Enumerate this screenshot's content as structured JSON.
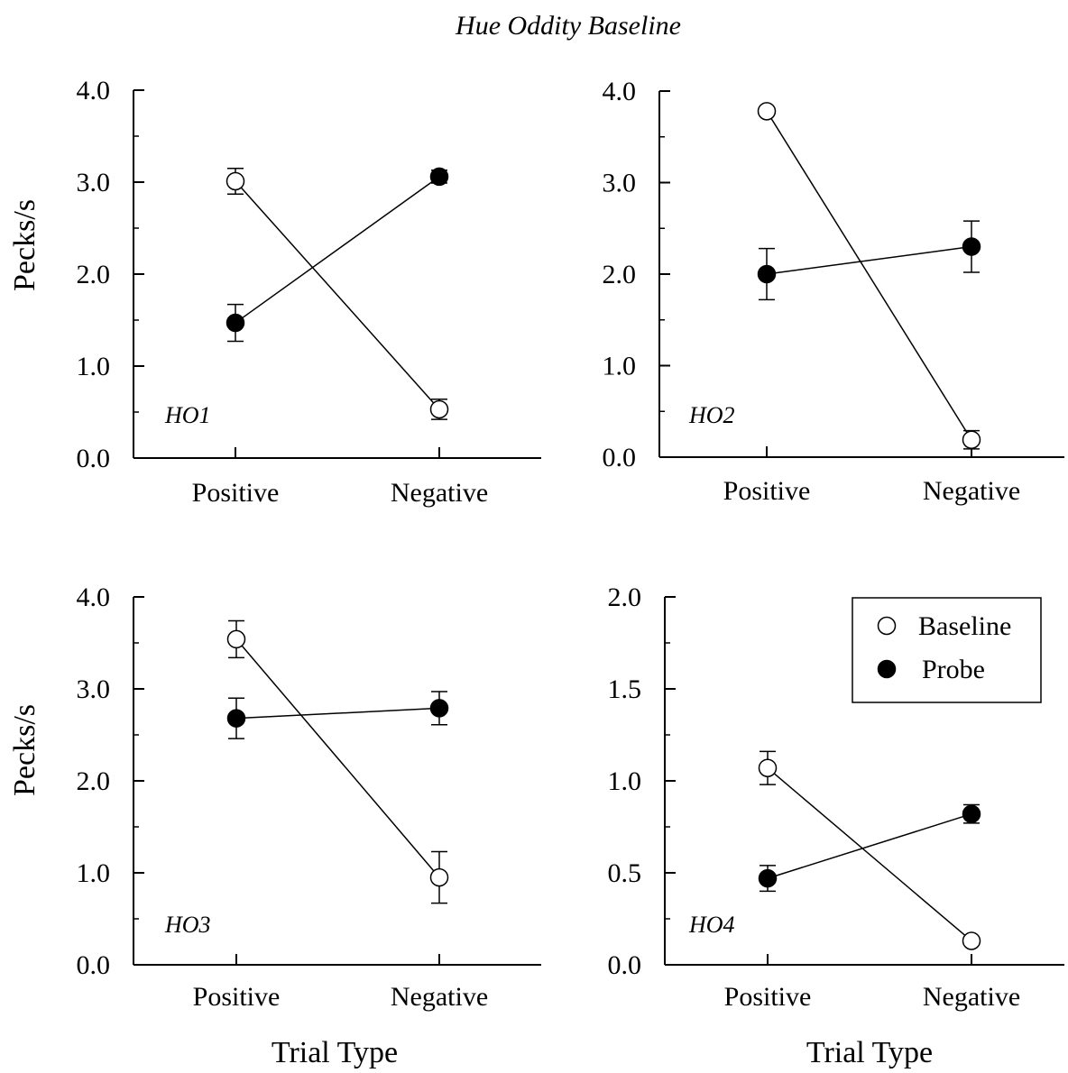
{
  "figure": {
    "title": "Hue Oddity Baseline"
  },
  "chart_data": [
    {
      "type": "line",
      "panel_label": "HO1",
      "categories": [
        "Positive",
        "Negative"
      ],
      "ylabel": "Pecks/s",
      "xlabel": "",
      "ylim": [
        0,
        4
      ],
      "yticks": [
        "0.0",
        "1.0",
        "2.0",
        "3.0",
        "4.0"
      ],
      "ytick_values": [
        0,
        1,
        2,
        3,
        4
      ],
      "minor_step": 0.5,
      "legend": false,
      "series": [
        {
          "name": "Baseline",
          "marker": "open",
          "values": [
            3.01,
            0.53
          ],
          "errors": [
            0.14,
            0.11
          ]
        },
        {
          "name": "Probe",
          "marker": "filled",
          "values": [
            1.47,
            3.06
          ],
          "errors": [
            0.2,
            0.07
          ]
        }
      ]
    },
    {
      "type": "line",
      "panel_label": "HO2",
      "categories": [
        "Positive",
        "Negative"
      ],
      "ylabel": "",
      "xlabel": "",
      "ylim": [
        0,
        4
      ],
      "yticks": [
        "0.0",
        "1.0",
        "2.0",
        "3.0",
        "4.0"
      ],
      "ytick_values": [
        0,
        1,
        2,
        3,
        4
      ],
      "minor_step": 0.5,
      "legend": false,
      "series": [
        {
          "name": "Baseline",
          "marker": "open",
          "values": [
            3.78,
            0.19
          ],
          "errors": [
            0.02,
            0.1
          ]
        },
        {
          "name": "Probe",
          "marker": "filled",
          "values": [
            2.0,
            2.3
          ],
          "errors": [
            0.28,
            0.28
          ]
        }
      ]
    },
    {
      "type": "line",
      "panel_label": "HO3",
      "categories": [
        "Positive",
        "Negative"
      ],
      "ylabel": "Pecks/s",
      "xlabel": "Trial Type",
      "ylim": [
        0,
        4
      ],
      "yticks": [
        "0.0",
        "1.0",
        "2.0",
        "3.0",
        "4.0"
      ],
      "ytick_values": [
        0,
        1,
        2,
        3,
        4
      ],
      "minor_step": 0.5,
      "legend": false,
      "series": [
        {
          "name": "Baseline",
          "marker": "open",
          "values": [
            3.54,
            0.95
          ],
          "errors": [
            0.2,
            0.28
          ]
        },
        {
          "name": "Probe",
          "marker": "filled",
          "values": [
            2.68,
            2.79
          ],
          "errors": [
            0.22,
            0.18
          ]
        }
      ]
    },
    {
      "type": "line",
      "panel_label": "HO4",
      "categories": [
        "Positive",
        "Negative"
      ],
      "ylabel": "",
      "xlabel": "Trial Type",
      "ylim": [
        0,
        2
      ],
      "yticks": [
        "0.0",
        "0.5",
        "1.0",
        "1.5",
        "2.0"
      ],
      "ytick_values": [
        0,
        0.5,
        1,
        1.5,
        2
      ],
      "minor_step": 0.25,
      "legend": true,
      "legend_position": "top-right",
      "series": [
        {
          "name": "Baseline",
          "marker": "open",
          "values": [
            1.07,
            0.13
          ],
          "errors": [
            0.09,
            0.02
          ]
        },
        {
          "name": "Probe",
          "marker": "filled",
          "values": [
            0.47,
            0.82
          ],
          "errors": [
            0.07,
            0.05
          ]
        }
      ]
    }
  ]
}
